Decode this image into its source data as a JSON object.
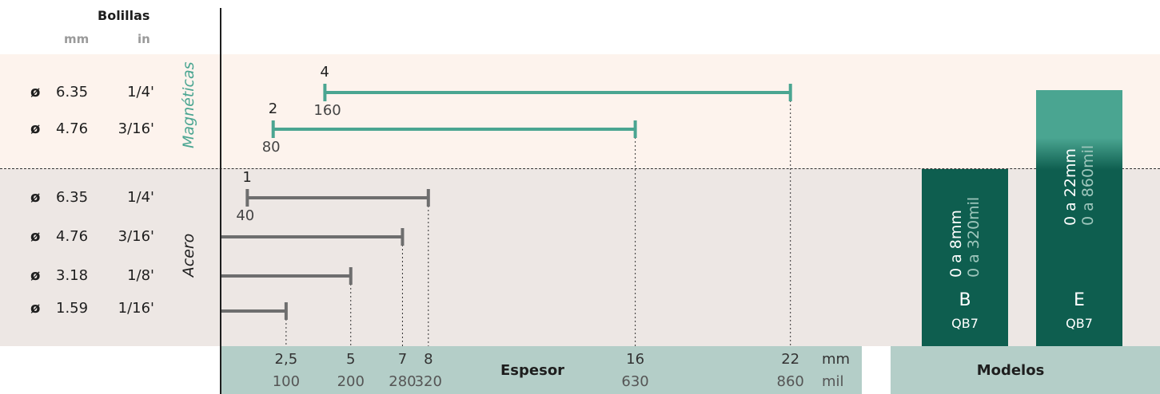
{
  "header": {
    "title": "Bolillas",
    "col_mm": "mm",
    "col_in": "in"
  },
  "groups": {
    "magneticas": {
      "label": "Magnéticas",
      "color": "#4aa591"
    },
    "acero": {
      "label": "Acero",
      "color": "#6e6e6e"
    }
  },
  "rows": [
    {
      "phi": "ø",
      "mm": "6.35",
      "in": "1/4'"
    },
    {
      "phi": "ø",
      "mm": "4.76",
      "in": "3/16'"
    },
    {
      "phi": "ø",
      "mm": "6.35",
      "in": "1/4'"
    },
    {
      "phi": "ø",
      "mm": "4.76",
      "in": "3/16'"
    },
    {
      "phi": "ø",
      "mm": "3.18",
      "in": "1/8'"
    },
    {
      "phi": "ø",
      "mm": "1.59",
      "in": "1/16'"
    }
  ],
  "bars": [
    {
      "group": "magneticas",
      "start_mm": 4,
      "end_mm": 22,
      "start_label": "4",
      "start_sub": "160"
    },
    {
      "group": "magneticas",
      "start_mm": 2,
      "end_mm": 16,
      "start_label": "2",
      "start_sub": "80"
    },
    {
      "group": "acero",
      "start_mm": 1,
      "end_mm": 8,
      "start_label": "1",
      "start_sub": "40"
    },
    {
      "group": "acero",
      "start_mm": 0,
      "end_mm": 7
    },
    {
      "group": "acero",
      "start_mm": 0,
      "end_mm": 5
    },
    {
      "group": "acero",
      "start_mm": 0,
      "end_mm": 2.5
    }
  ],
  "axis": {
    "title": "Espesor",
    "unit_mm": "mm",
    "unit_mil": "mil",
    "ticks": [
      {
        "mm_value": 2.5,
        "mm": "2,5",
        "mil": "100"
      },
      {
        "mm_value": 5,
        "mm": "5",
        "mil": "200"
      },
      {
        "mm_value": 7,
        "mm": "7",
        "mil": "280"
      },
      {
        "mm_value": 8,
        "mm": "8",
        "mil": "320"
      },
      {
        "mm_value": 16,
        "mm": "16",
        "mil": "630"
      },
      {
        "mm_value": 22,
        "mm": "22",
        "mil": "860"
      }
    ]
  },
  "models": {
    "title": "Modelos",
    "items": [
      {
        "letter": "B",
        "code": "QB7",
        "range_mm": "0 a 8mm",
        "range_mil": "0 a 320mil",
        "color": "#0e5e4f"
      },
      {
        "letter": "E",
        "code": "QB7",
        "range_mm": "0 a 22mm",
        "range_mil": "0 a 860mil",
        "color": "#0e5e4f",
        "top_color": "#4aa591"
      }
    ]
  }
}
